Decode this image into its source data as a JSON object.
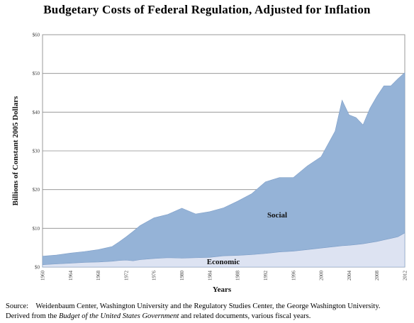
{
  "chart_data": {
    "type": "area",
    "title": "Budgetary Costs of Federal Regulation, Adjusted for Inflation",
    "xlabel": "Years",
    "ylabel": "Billions of Constant 2005 Dollars",
    "x": [
      1960,
      1962,
      1964,
      1966,
      1968,
      1970,
      1971,
      1972,
      1973,
      1974,
      1976,
      1978,
      1980,
      1982,
      1984,
      1986,
      1988,
      1990,
      1992,
      1994,
      1996,
      1998,
      2000,
      2002,
      2003,
      2004,
      2005,
      2006,
      2007,
      2008,
      2009,
      2010,
      2011,
      2012
    ],
    "series": [
      {
        "name": "Economic",
        "values": [
          0.6,
          0.8,
          1.0,
          1.2,
          1.3,
          1.5,
          1.7,
          1.8,
          1.6,
          1.9,
          2.2,
          2.4,
          2.3,
          2.4,
          2.5,
          2.9,
          3.0,
          3.2,
          3.5,
          3.9,
          4.1,
          4.5,
          4.9,
          5.3,
          5.5,
          5.6,
          5.8,
          6.0,
          6.3,
          6.6,
          7.0,
          7.4,
          7.8,
          8.8
        ]
      },
      {
        "name": "Social",
        "values": [
          2.2,
          2.3,
          2.6,
          2.8,
          3.2,
          3.8,
          4.8,
          6.0,
          7.6,
          8.8,
          10.5,
          11.2,
          12.9,
          11.3,
          11.8,
          12.4,
          14.0,
          15.7,
          18.5,
          19.2,
          19.0,
          21.6,
          23.6,
          29.8,
          37.6,
          33.7,
          32.8,
          30.7,
          34.7,
          37.5,
          39.8,
          39.4,
          40.8,
          41.4
        ]
      }
    ],
    "y_ticks": [
      "$0",
      "$10",
      "$20",
      "$30",
      "$40",
      "$50",
      "$60"
    ],
    "x_ticks": [
      "1960",
      "1964",
      "1968",
      "1972",
      "1976",
      "1980",
      "1984",
      "1988",
      "1992",
      "1996",
      "2000",
      "2004",
      "2008",
      "2012"
    ],
    "xlim": [
      1960,
      2012
    ],
    "ylim": [
      0,
      60
    ],
    "annotations": [
      "Social",
      "Economic"
    ],
    "colors": {
      "social": "#95b3d7",
      "economic": "#dde3f2",
      "plot_background": "#ffffff"
    },
    "grid": "horizontal"
  },
  "source": {
    "label": "Source:",
    "line1": "Weidenbaum Center, Washington University and the Regulatory Studies Center, the George Washington University.",
    "line2_before": "Derived from the ",
    "line2_italic": "Budget of the United States Government",
    "line2_after": " and related documents, various fiscal years."
  }
}
